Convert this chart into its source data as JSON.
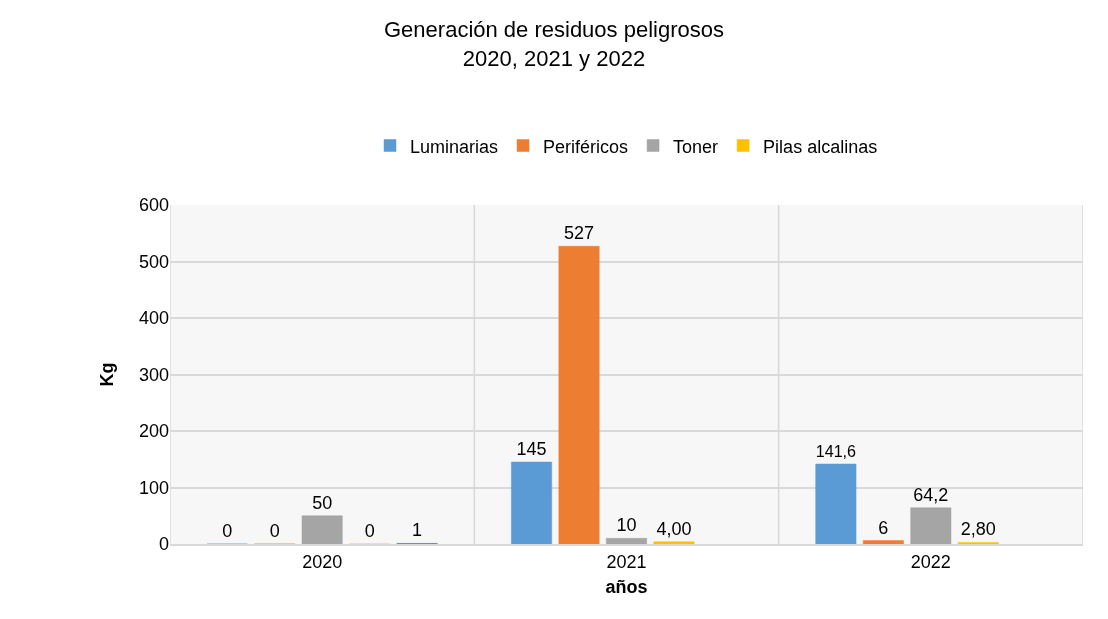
{
  "chart_data": {
    "type": "bar",
    "title": "Generación de residuos peligrosos\n2020, 2021 y 2022",
    "xlabel": "años",
    "ylabel": "Kg",
    "categories": [
      "2020",
      "2021",
      "2022"
    ],
    "series": [
      {
        "name": "Luminarias",
        "color": "#5b9bd5",
        "values": [
          0,
          145,
          141.6
        ],
        "value_labels": [
          "0",
          "145",
          "141,6"
        ]
      },
      {
        "name": "Periféricos",
        "color": "#ed7d31",
        "values": [
          0,
          527,
          6
        ],
        "value_labels": [
          "0",
          "527",
          "6"
        ]
      },
      {
        "name": "Toner",
        "color": "#a5a5a5",
        "values": [
          50,
          10,
          64.2
        ],
        "value_labels": [
          "50",
          "10",
          "64,2"
        ]
      },
      {
        "name": "Pilas alcalinas",
        "color": "#ffc000",
        "values": [
          0,
          4,
          2.8
        ],
        "value_labels": [
          "0",
          "4,00",
          "2,80"
        ]
      },
      {
        "color": "#4472c4",
        "values": [
          1,
          null,
          null
        ],
        "value_labels": [
          "1",
          null,
          null
        ]
      }
    ],
    "ylim": [
      0,
      600
    ],
    "yticks": [
      0,
      100,
      200,
      300,
      400,
      500,
      600
    ],
    "grid": true,
    "legend": "top"
  }
}
